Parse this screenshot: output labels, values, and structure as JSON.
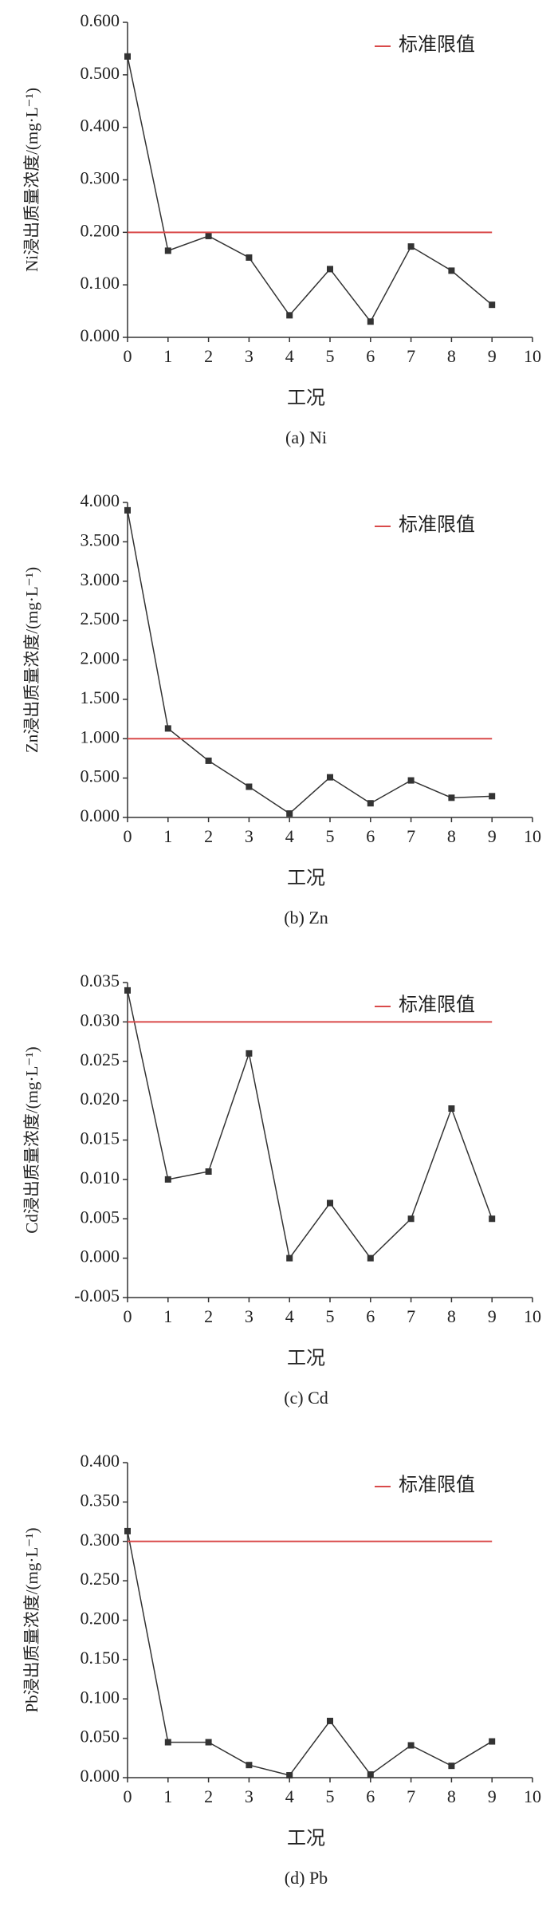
{
  "chart_data": [
    {
      "type": "line",
      "caption": "(a) Ni",
      "x_label": "工况",
      "y_label": "Ni浸出质量浓度/(mg·L⁻¹)",
      "x": [
        0,
        1,
        2,
        3,
        4,
        5,
        6,
        7,
        8,
        9
      ],
      "series": [
        {
          "color": "#333333",
          "values": [
            0.535,
            0.165,
            0.193,
            0.152,
            0.042,
            0.13,
            0.03,
            0.173,
            0.127,
            0.062
          ]
        },
        {
          "name": "标准限值",
          "color": "#d94a4a",
          "values": [
            0.2,
            0.2,
            0.2,
            0.2,
            0.2,
            0.2,
            0.2,
            0.2,
            0.2,
            0.2
          ]
        }
      ],
      "xlim": [
        0,
        10
      ],
      "xticks": [
        0,
        1,
        2,
        3,
        4,
        5,
        6,
        7,
        8,
        9,
        10
      ],
      "ylim": [
        0,
        0.6
      ],
      "yticks": [
        {
          "value": 0,
          "label": "0.000"
        },
        {
          "value": 0.1,
          "label": "0.100"
        },
        {
          "value": 0.2,
          "label": "0.200"
        },
        {
          "value": 0.3,
          "label": "0.300"
        },
        {
          "value": 0.4,
          "label": "0.400"
        },
        {
          "value": 0.5,
          "label": "0.500"
        },
        {
          "value": 0.6,
          "label": "0.600"
        }
      ]
    },
    {
      "type": "line",
      "caption": "(b) Zn",
      "x_label": "工况",
      "y_label": "Zn浸出质量浓度/(mg·L⁻¹)",
      "x": [
        0,
        1,
        2,
        3,
        4,
        5,
        6,
        7,
        8,
        9
      ],
      "series": [
        {
          "color": "#333333",
          "values": [
            3.9,
            1.13,
            0.72,
            0.39,
            0.05,
            0.51,
            0.18,
            0.47,
            0.25,
            0.27
          ]
        },
        {
          "name": "标准限值",
          "color": "#d94a4a",
          "values": [
            1,
            1,
            1,
            1,
            1,
            1,
            1,
            1,
            1,
            1
          ]
        }
      ],
      "xlim": [
        0,
        10
      ],
      "xticks": [
        0,
        1,
        2,
        3,
        4,
        5,
        6,
        7,
        8,
        9,
        10
      ],
      "ylim": [
        0,
        4
      ],
      "yticks": [
        {
          "value": 0,
          "label": "0.000"
        },
        {
          "value": 0.5,
          "label": "0.500"
        },
        {
          "value": 1,
          "label": "1.000"
        },
        {
          "value": 1.5,
          "label": "1.500"
        },
        {
          "value": 2,
          "label": "2.000"
        },
        {
          "value": 2.5,
          "label": "2.500"
        },
        {
          "value": 3,
          "label": "3.000"
        },
        {
          "value": 3.5,
          "label": "3.500"
        },
        {
          "value": 4,
          "label": "4.000"
        }
      ]
    },
    {
      "type": "line",
      "caption": "(c) Cd",
      "x_label": "工况",
      "y_label": "Cd浸出质量浓度/(mg·L⁻¹)",
      "x": [
        0,
        1,
        2,
        3,
        4,
        5,
        6,
        7,
        8,
        9
      ],
      "series": [
        {
          "color": "#333333",
          "values": [
            0.034,
            0.01,
            0.011,
            0.026,
            0.0,
            0.007,
            0.0,
            0.005,
            0.019,
            0.005
          ]
        },
        {
          "name": "标准限值",
          "color": "#d94a4a",
          "values": [
            0.03,
            0.03,
            0.03,
            0.03,
            0.03,
            0.03,
            0.03,
            0.03,
            0.03,
            0.03
          ]
        }
      ],
      "xlim": [
        0,
        10
      ],
      "xticks": [
        0,
        1,
        2,
        3,
        4,
        5,
        6,
        7,
        8,
        9,
        10
      ],
      "ylim": [
        -0.005,
        0.035
      ],
      "yticks": [
        {
          "value": -0.005,
          "label": "-0.005"
        },
        {
          "value": 0,
          "label": "0.000"
        },
        {
          "value": 0.005,
          "label": "0.005"
        },
        {
          "value": 0.01,
          "label": "0.010"
        },
        {
          "value": 0.015,
          "label": "0.015"
        },
        {
          "value": 0.02,
          "label": "0.020"
        },
        {
          "value": 0.025,
          "label": "0.025"
        },
        {
          "value": 0.03,
          "label": "0.030"
        },
        {
          "value": 0.035,
          "label": "0.035"
        }
      ]
    },
    {
      "type": "line",
      "caption": "(d) Pb",
      "x_label": "工况",
      "y_label": "Pb浸出质量浓度/(mg·L⁻¹)",
      "x": [
        0,
        1,
        2,
        3,
        4,
        5,
        6,
        7,
        8,
        9
      ],
      "series": [
        {
          "color": "#333333",
          "values": [
            0.313,
            0.045,
            0.045,
            0.016,
            0.003,
            0.072,
            0.004,
            0.041,
            0.015,
            0.046
          ]
        },
        {
          "name": "标准限值",
          "color": "#d94a4a",
          "values": [
            0.3,
            0.3,
            0.3,
            0.3,
            0.3,
            0.3,
            0.3,
            0.3,
            0.3,
            0.3
          ]
        }
      ],
      "xlim": [
        0,
        10
      ],
      "xticks": [
        0,
        1,
        2,
        3,
        4,
        5,
        6,
        7,
        8,
        9,
        10
      ],
      "ylim": [
        0,
        0.4
      ],
      "yticks": [
        {
          "value": 0,
          "label": "0.000"
        },
        {
          "value": 0.05,
          "label": "0.050"
        },
        {
          "value": 0.1,
          "label": "0.100"
        },
        {
          "value": 0.15,
          "label": "0.150"
        },
        {
          "value": 0.2,
          "label": "0.200"
        },
        {
          "value": 0.25,
          "label": "0.250"
        },
        {
          "value": 0.3,
          "label": "0.300"
        },
        {
          "value": 0.35,
          "label": "0.350"
        },
        {
          "value": 0.4,
          "label": "0.400"
        }
      ]
    }
  ]
}
